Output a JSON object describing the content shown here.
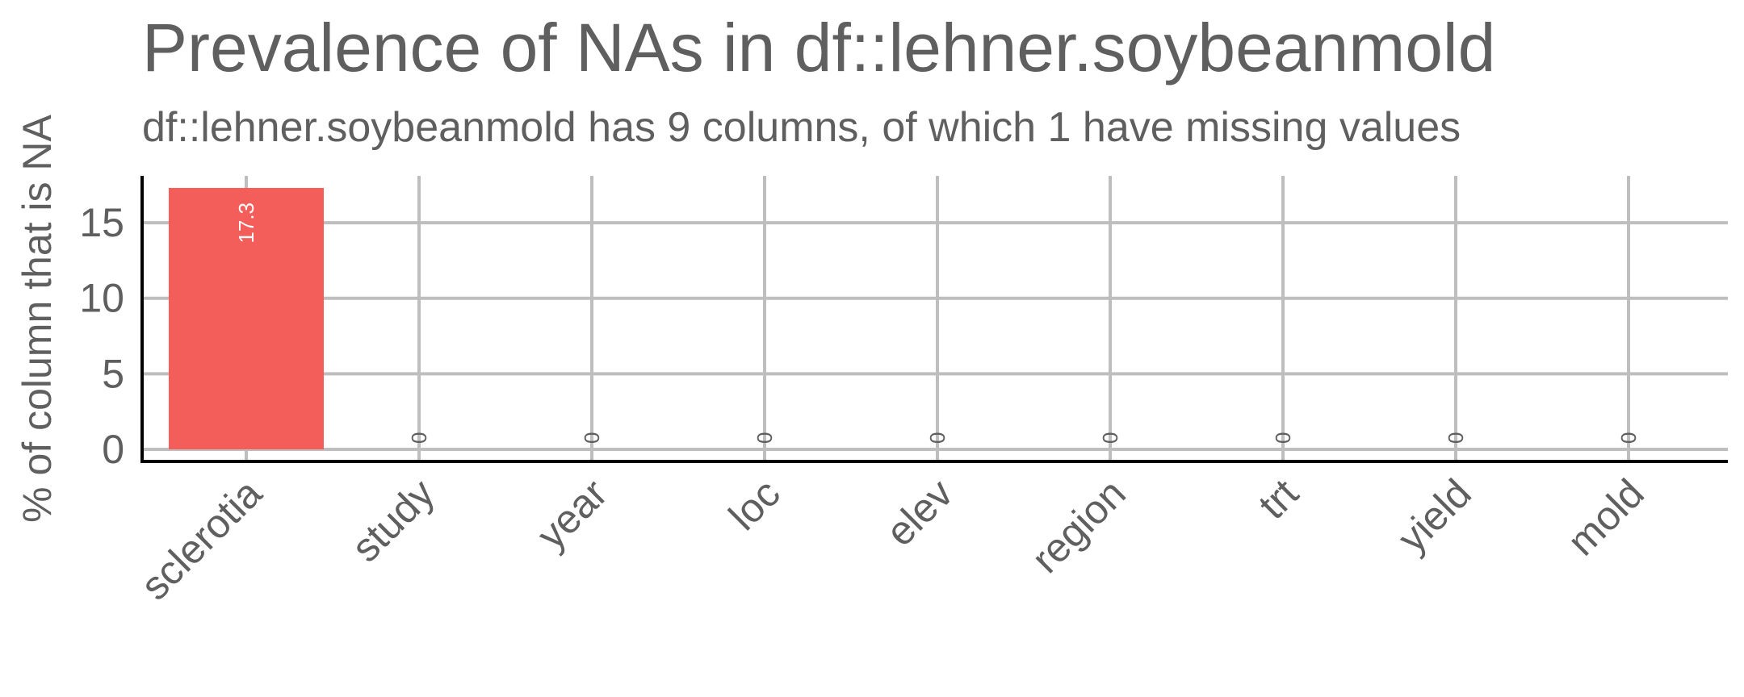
{
  "chart_data": {
    "type": "bar",
    "title": "Prevalence of NAs in df::lehner.soybeanmold",
    "subtitle": "df::lehner.soybeanmold has 9 columns, of which 1 have missing values",
    "xlabel": "",
    "ylabel": "% of column that is NA",
    "categories": [
      "sclerotia",
      "study",
      "year",
      "loc",
      "elev",
      "region",
      "trt",
      "yield",
      "mold"
    ],
    "values": [
      17.3,
      0,
      0,
      0,
      0,
      0,
      0,
      0,
      0
    ],
    "value_labels": [
      "17.3",
      "0",
      "0",
      "0",
      "0",
      "0",
      "0",
      "0",
      "0"
    ],
    "yticks": [
      0,
      5,
      10,
      15
    ],
    "ytick_labels": [
      "0",
      "5",
      "10",
      "15"
    ],
    "ylim": [
      -0.8,
      18.1
    ],
    "grid": true,
    "legend": "none",
    "colors": {
      "bar": "#f35e5a",
      "grid": "#bebebe",
      "axis": "#000000",
      "text": "#5f5f5f",
      "bar_label_inside": "#ffffff",
      "bar_label_zero": "#5f5f5f"
    }
  }
}
